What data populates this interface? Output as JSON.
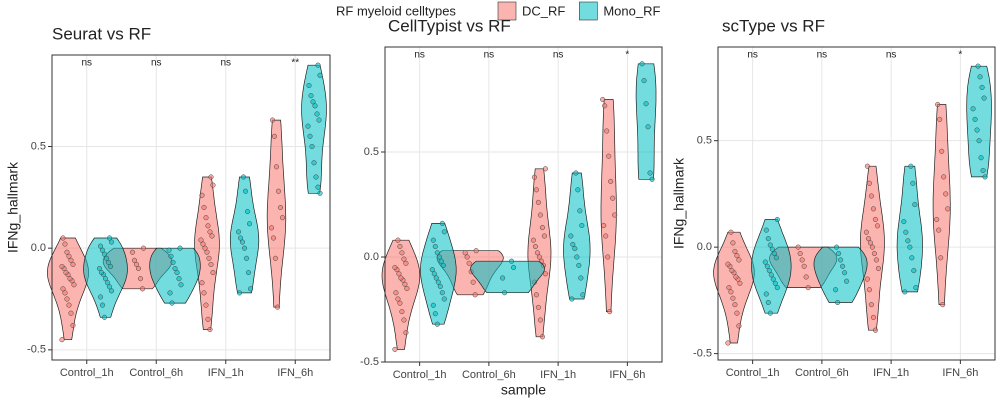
{
  "legend_title": "RF myeloid celltypes",
  "chart_data": [
    {
      "type": "violin",
      "title": "Seurat vs RF",
      "ylabel": "IFNg_hallmark",
      "categories": [
        "Control_1h",
        "Control_6h",
        "IFN_1h",
        "IFN_6h"
      ],
      "annotations": [
        "ns",
        "ns",
        "ns",
        "**"
      ],
      "ylim": [
        -0.55,
        0.95
      ],
      "yticks": [
        -0.5,
        {
          "value": 0,
          "label": "0.0"
        },
        0.5
      ],
      "grid": true,
      "series": [
        {
          "name": "DC_RF",
          "color": "#F8766D",
          "values": [
            [
              -0.45,
              -0.38,
              -0.32,
              -0.28,
              -0.25,
              -0.22,
              -0.2,
              -0.18,
              -0.16,
              -0.15,
              -0.13,
              -0.12,
              -0.1,
              -0.09,
              -0.08,
              -0.06,
              -0.04,
              -0.02,
              0.02,
              0.05
            ],
            [
              -0.2,
              -0.15,
              -0.1,
              -0.08,
              -0.06,
              -0.02,
              0.0
            ],
            [
              -0.4,
              -0.35,
              -0.28,
              -0.22,
              -0.17,
              -0.12,
              -0.08,
              -0.05,
              -0.02,
              0.0,
              0.02,
              0.04,
              0.06,
              0.08,
              0.11,
              0.15,
              0.2,
              0.26,
              0.31,
              0.35
            ],
            [
              -0.29,
              -0.05,
              0.05,
              0.1,
              0.15,
              0.2,
              0.28,
              0.4,
              0.55,
              0.63
            ]
          ]
        },
        {
          "name": "Mono_RF",
          "color": "#00BFC4",
          "values": [
            [
              -0.34,
              -0.28,
              -0.24,
              -0.21,
              -0.19,
              -0.17,
              -0.15,
              -0.13,
              -0.12,
              -0.1,
              -0.09,
              -0.07,
              -0.05,
              -0.03,
              -0.01,
              0.01,
              0.03,
              0.05
            ],
            [
              -0.27,
              -0.22,
              -0.18,
              -0.15,
              -0.12,
              -0.1,
              -0.07,
              -0.04,
              -0.01,
              0.0
            ],
            [
              -0.22,
              -0.2,
              -0.12,
              -0.05,
              0.0,
              0.03,
              0.05,
              0.08,
              0.12,
              0.18,
              0.28,
              0.35
            ],
            [
              0.27,
              0.3,
              0.35,
              0.42,
              0.5,
              0.55,
              0.6,
              0.63,
              0.66,
              0.7,
              0.72,
              0.75,
              0.8,
              0.85,
              0.9
            ]
          ]
        }
      ]
    },
    {
      "type": "violin",
      "title": "CellTypist vs RF",
      "xlabel": "sample",
      "categories": [
        "Control_1h",
        "Control_6h",
        "IFN_1h",
        "IFN_6h"
      ],
      "annotations": [
        "ns",
        "ns",
        "ns",
        "*"
      ],
      "ylim": [
        -0.5,
        1.0
      ],
      "yticks": [
        -0.5,
        {
          "value": 0,
          "label": "0.0"
        },
        0.5
      ],
      "grid": true,
      "series": [
        {
          "name": "DC_RF",
          "color": "#F8766D",
          "values": [
            [
              -0.44,
              -0.36,
              -0.3,
              -0.26,
              -0.22,
              -0.2,
              -0.17,
              -0.15,
              -0.13,
              -0.11,
              -0.1,
              -0.08,
              -0.06,
              -0.05,
              -0.03,
              -0.01,
              0.02,
              0.05,
              0.08
            ],
            [
              -0.18,
              -0.12,
              -0.07,
              -0.03,
              0.0,
              0.02,
              0.03
            ],
            [
              -0.38,
              -0.3,
              -0.24,
              -0.18,
              -0.12,
              -0.08,
              -0.04,
              -0.02,
              0.0,
              0.02,
              0.05,
              0.08,
              0.1,
              0.14,
              0.2,
              0.26,
              0.32,
              0.38,
              0.42
            ],
            [
              -0.26,
              0.0,
              0.1,
              0.15,
              0.2,
              0.28,
              0.36,
              0.48,
              0.6,
              0.72,
              0.75
            ]
          ]
        },
        {
          "name": "Mono_RF",
          "color": "#00BFC4",
          "values": [
            [
              -0.32,
              -0.27,
              -0.23,
              -0.2,
              -0.17,
              -0.14,
              -0.12,
              -0.1,
              -0.08,
              -0.06,
              -0.04,
              -0.02,
              0.0,
              0.02,
              0.05,
              0.08,
              0.12,
              0.16
            ],
            [
              -0.17,
              -0.1,
              -0.05,
              -0.02
            ],
            [
              -0.2,
              -0.18,
              -0.1,
              -0.04,
              0.0,
              0.04,
              0.06,
              0.1,
              0.15,
              0.22,
              0.32,
              0.4
            ],
            [
              0.37,
              0.4,
              0.62,
              0.73,
              0.84,
              0.92
            ]
          ]
        }
      ]
    },
    {
      "type": "violin",
      "title": "scType vs RF",
      "ylabel": "IFNg_hallmark",
      "categories": [
        "Control_1h",
        "Control_6h",
        "IFN_1h",
        "IFN_6h"
      ],
      "annotations": [
        "ns",
        "ns",
        "ns",
        "*"
      ],
      "ylim": [
        -0.53,
        0.94
      ],
      "yticks": [
        -0.5,
        {
          "value": 0,
          "label": "0.0"
        },
        0.5
      ],
      "grid": true,
      "series": [
        {
          "name": "DC_RF",
          "color": "#F8766D",
          "values": [
            [
              -0.45,
              -0.37,
              -0.31,
              -0.27,
              -0.24,
              -0.21,
              -0.19,
              -0.17,
              -0.15,
              -0.14,
              -0.12,
              -0.11,
              -0.09,
              -0.08,
              -0.06,
              -0.04,
              -0.02,
              0.02,
              0.07
            ],
            [
              -0.19,
              -0.14,
              -0.09,
              -0.06,
              -0.03,
              0.0
            ],
            [
              -0.39,
              -0.33,
              -0.27,
              -0.2,
              -0.15,
              -0.1,
              -0.06,
              -0.03,
              0.0,
              0.02,
              0.04,
              0.07,
              0.1,
              0.13,
              0.18,
              0.24,
              0.3,
              0.38
            ],
            [
              -0.27,
              -0.05,
              0.08,
              0.13,
              0.18,
              0.25,
              0.33,
              0.45,
              0.6,
              0.67
            ]
          ]
        },
        {
          "name": "Mono_RF",
          "color": "#00BFC4",
          "values": [
            [
              -0.31,
              -0.26,
              -0.22,
              -0.19,
              -0.17,
              -0.15,
              -0.13,
              -0.11,
              -0.09,
              -0.07,
              -0.05,
              -0.03,
              -0.01,
              0.01,
              0.04,
              0.08,
              0.13
            ],
            [
              -0.26,
              -0.2,
              -0.16,
              -0.12,
              -0.09,
              -0.06,
              -0.03,
              0.0
            ],
            [
              -0.21,
              -0.19,
              -0.11,
              -0.05,
              0.0,
              0.03,
              0.07,
              0.12,
              0.2,
              0.3,
              0.38
            ],
            [
              0.33,
              0.36,
              0.42,
              0.5,
              0.55,
              0.6,
              0.65,
              0.7,
              0.75,
              0.8,
              0.85
            ]
          ]
        }
      ]
    }
  ]
}
